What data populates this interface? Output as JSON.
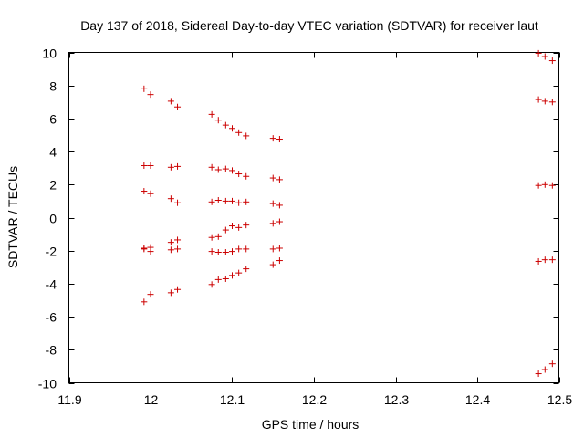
{
  "chart_data": {
    "type": "scatter",
    "title": "Day 137 of 2018, Sidereal Day-to-day VTEC variation (SDTVAR) for receiver laut",
    "xlabel": "GPS time / hours",
    "ylabel": "SDTVAR / TECUs",
    "xlim": [
      11.9,
      12.5
    ],
    "ylim": [
      -10,
      10
    ],
    "xticks": [
      "11.9",
      "12",
      "12.1",
      "12.2",
      "12.3",
      "12.4",
      "12.5"
    ],
    "yticks": [
      "-10",
      "-8",
      "-6",
      "-4",
      "-2",
      "0",
      "2",
      "4",
      "6",
      "8",
      "10"
    ],
    "grid": false,
    "marker": "+",
    "marker_color": "#cc0000",
    "series": [
      {
        "name": "SDTVAR",
        "points": [
          [
            11.992,
            7.8
          ],
          [
            12.0,
            7.45
          ],
          [
            12.025,
            7.05
          ],
          [
            12.033,
            6.7
          ],
          [
            12.075,
            6.25
          ],
          [
            12.083,
            5.9
          ],
          [
            12.092,
            5.6
          ],
          [
            12.1,
            5.4
          ],
          [
            12.108,
            5.15
          ],
          [
            12.117,
            4.95
          ],
          [
            12.15,
            4.8
          ],
          [
            12.158,
            4.75
          ],
          [
            11.992,
            3.15
          ],
          [
            12.0,
            3.15
          ],
          [
            12.025,
            3.05
          ],
          [
            12.033,
            3.1
          ],
          [
            12.075,
            3.05
          ],
          [
            12.083,
            2.9
          ],
          [
            12.092,
            2.95
          ],
          [
            12.1,
            2.85
          ],
          [
            12.108,
            2.65
          ],
          [
            12.117,
            2.5
          ],
          [
            12.15,
            2.4
          ],
          [
            12.158,
            2.3
          ],
          [
            11.992,
            1.6
          ],
          [
            12.0,
            1.45
          ],
          [
            12.025,
            1.15
          ],
          [
            12.033,
            0.9
          ],
          [
            12.075,
            0.95
          ],
          [
            12.083,
            1.05
          ],
          [
            12.092,
            1.0
          ],
          [
            12.1,
            1.0
          ],
          [
            12.108,
            0.9
          ],
          [
            12.117,
            0.95
          ],
          [
            12.15,
            0.85
          ],
          [
            12.158,
            0.75
          ],
          [
            12.025,
            -1.5
          ],
          [
            12.033,
            -1.35
          ],
          [
            12.075,
            -1.2
          ],
          [
            12.083,
            -1.15
          ],
          [
            12.092,
            -0.75
          ],
          [
            12.1,
            -0.5
          ],
          [
            12.108,
            -0.6
          ],
          [
            12.117,
            -0.45
          ],
          [
            12.15,
            -0.35
          ],
          [
            12.158,
            -0.25
          ],
          [
            11.992,
            -1.9
          ],
          [
            11.992,
            -1.85
          ],
          [
            12.0,
            -1.8
          ],
          [
            12.0,
            -2.05
          ],
          [
            12.025,
            -1.95
          ],
          [
            12.033,
            -1.9
          ],
          [
            12.075,
            -2.05
          ],
          [
            12.083,
            -2.1
          ],
          [
            12.092,
            -2.1
          ],
          [
            12.1,
            -2.05
          ],
          [
            12.108,
            -1.9
          ],
          [
            12.117,
            -1.9
          ],
          [
            12.15,
            -1.9
          ],
          [
            12.158,
            -1.85
          ],
          [
            11.992,
            -5.1
          ],
          [
            12.0,
            -4.65
          ],
          [
            12.025,
            -4.55
          ],
          [
            12.033,
            -4.35
          ],
          [
            12.075,
            -4.05
          ],
          [
            12.083,
            -3.75
          ],
          [
            12.092,
            -3.7
          ],
          [
            12.1,
            -3.5
          ],
          [
            12.108,
            -3.35
          ],
          [
            12.117,
            -3.1
          ],
          [
            12.15,
            -2.85
          ],
          [
            12.158,
            -2.6
          ],
          [
            12.475,
            9.95
          ],
          [
            12.483,
            9.75
          ],
          [
            12.492,
            9.5
          ],
          [
            12.475,
            7.15
          ],
          [
            12.483,
            7.05
          ],
          [
            12.492,
            7.0
          ],
          [
            12.475,
            1.95
          ],
          [
            12.483,
            2.0
          ],
          [
            12.492,
            1.95
          ],
          [
            12.475,
            -2.65
          ],
          [
            12.483,
            -2.55
          ],
          [
            12.492,
            -2.55
          ],
          [
            12.475,
            -9.45
          ],
          [
            12.483,
            -9.2
          ],
          [
            12.492,
            -8.85
          ]
        ]
      }
    ]
  }
}
